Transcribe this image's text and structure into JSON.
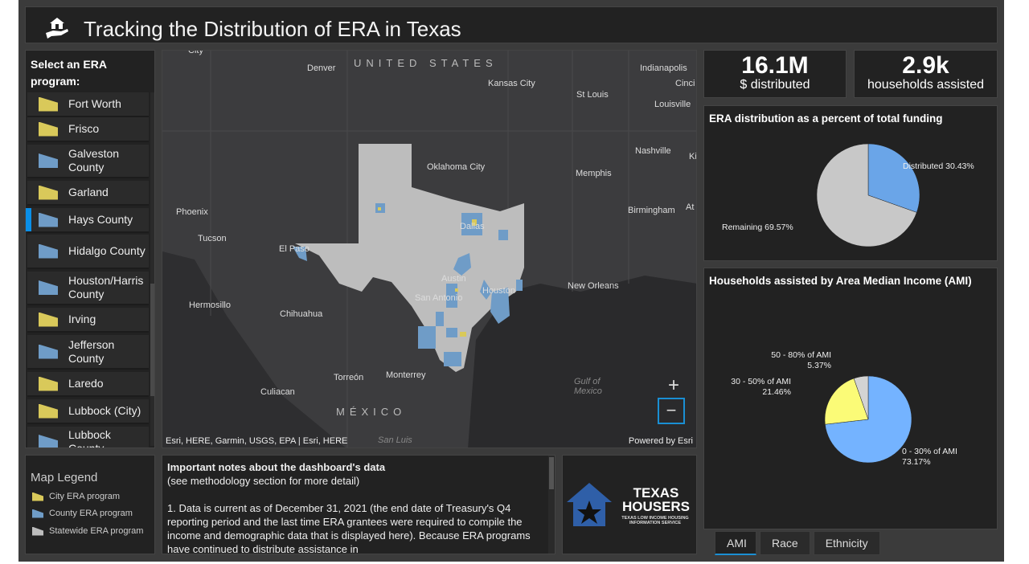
{
  "header": {
    "title": "Tracking the Distribution of ERA in Texas",
    "icon": "house-in-hand-icon"
  },
  "sidebar": {
    "heading": "Select an ERA program:",
    "selected": "Hays County",
    "items": [
      {
        "label": "Fort Worth",
        "type": "city"
      },
      {
        "label": "Frisco",
        "type": "city"
      },
      {
        "label": "Galveston County",
        "type": "county"
      },
      {
        "label": "Garland",
        "type": "city"
      },
      {
        "label": "Hays County",
        "type": "county"
      },
      {
        "label": "Hidalgo County",
        "type": "county"
      },
      {
        "label": "Houston/Harris County",
        "type": "county"
      },
      {
        "label": "Irving",
        "type": "city"
      },
      {
        "label": "Jefferson County",
        "type": "county"
      },
      {
        "label": "Laredo",
        "type": "city"
      },
      {
        "label": "Lubbock (City)",
        "type": "city"
      },
      {
        "label": "Lubbock County",
        "type": "county"
      }
    ]
  },
  "colors": {
    "city": "#d9c95a",
    "county": "#6f9cc7",
    "statewide": "#bdbdbd",
    "accent": "#1a8fd4",
    "distributed": "#6aa5e8",
    "remaining": "#c8c8c8",
    "ami_0_30": "#74b3ff",
    "ami_30_50": "#fbfb77",
    "ami_50_80": "#d3d3d3"
  },
  "map": {
    "labels": {
      "us": "UNITED STATES",
      "mexico": "MÉXICO",
      "denver": "Denver",
      "kansas_city": "Kansas City",
      "st_louis": "St Louis",
      "indianapolis": "Indianapolis",
      "cinci": "Cinci",
      "louisville": "Louisville",
      "nashville": "Nashville",
      "ki": "Ki",
      "oklahoma_city": "Oklahoma City",
      "memphis": "Memphis",
      "phoenix": "Phoenix",
      "birmingham": "Birmingham",
      "at": "At",
      "tucson": "Tucson",
      "el_paso": "El Paso",
      "dallas": "Dallas",
      "austin": "Austin",
      "houston": "Houston",
      "san_antonio": "San Antonio",
      "new_orleans": "New Orleans",
      "hermosillo": "Hermosillo",
      "chihuahua": "Chihuahua",
      "torreon": "Torreón",
      "monterrey": "Monterrey",
      "culiacan": "Culiacan",
      "gulf": "Gulf of Mexico",
      "san_luis": "San Luis",
      "city_top": "City"
    },
    "zoom_in": "+",
    "zoom_out": "−",
    "attribution": "Esri, HERE, Garmin, USGS, EPA | Esri, HERE",
    "powered_by": "Powered by Esri"
  },
  "stats": {
    "distributed_value": "16.1M",
    "distributed_label": "$ distributed",
    "households_value": "2.9k",
    "households_label": "households assisted"
  },
  "chart_data": [
    {
      "type": "pie",
      "title": "ERA distribution as a percent of total funding",
      "slices": [
        {
          "label": "Distributed",
          "value": 30.43,
          "display": "Distributed 30.43%"
        },
        {
          "label": "Remaining",
          "value": 69.57,
          "display": "Remaining 69.57%"
        }
      ]
    },
    {
      "type": "pie",
      "title": "Households assisted by Area Median Income (AMI)",
      "slices": [
        {
          "label": "0 - 30% of AMI",
          "value": 73.17,
          "display": "73.17%"
        },
        {
          "label": "30 - 50% of AMI",
          "value": 21.46,
          "display": "21.46%"
        },
        {
          "label": "50 - 80% of AMI",
          "value": 5.37,
          "display": "5.37%"
        }
      ]
    }
  ],
  "tabs": [
    "AMI",
    "Race",
    "Ethnicity"
  ],
  "legend": {
    "title": "Map Legend",
    "items": [
      "City ERA program",
      "County ERA program",
      "Statewide ERA program"
    ]
  },
  "notes": {
    "title": "Important notes about the dashboard's data",
    "subtitle": "(see methodology section for more detail)",
    "body": "1. Data is current as of December 31, 2021 (the end date of Treasury's Q4 reporting period and the last time ERA grantees were required to compile the income and demographic data that is displayed here). Because ERA programs have continued to distribute assistance in"
  },
  "logo": {
    "line1": "TEXAS",
    "line2": "HOUSERS",
    "tagline": "TEXAS LOW INCOME HOUSING INFORMATION SERVICE"
  }
}
